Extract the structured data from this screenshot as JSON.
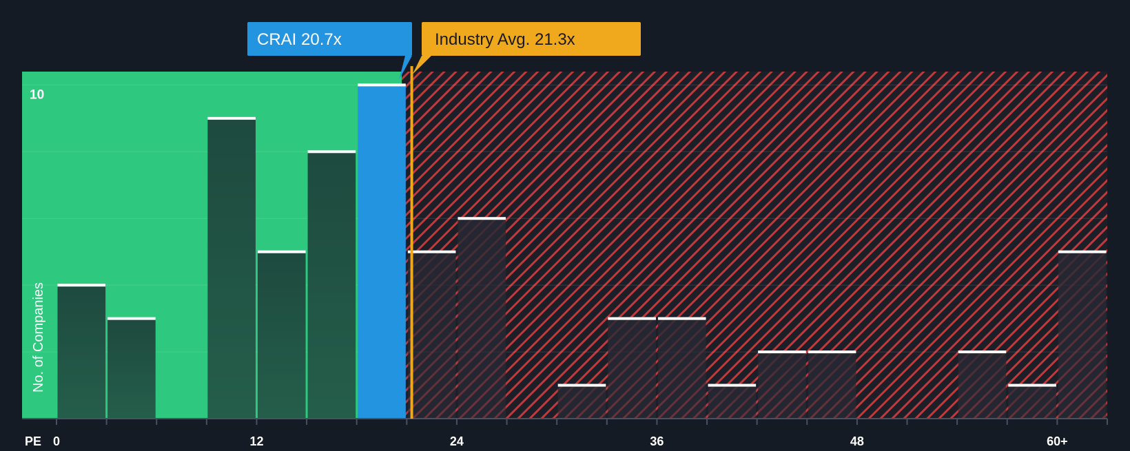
{
  "chart_data": {
    "type": "bar",
    "title": "",
    "xlabel": "PE",
    "ylabel": "No. of Companies",
    "xlim": [
      0,
      63
    ],
    "ylim": [
      0,
      10.4
    ],
    "bin_width": 3,
    "x_ticks": [
      "0",
      "12",
      "24",
      "36",
      "48",
      "60+"
    ],
    "x_tick_values": [
      0,
      12,
      24,
      36,
      48,
      60
    ],
    "y_ticks": [
      "10"
    ],
    "y_tick_values": [
      10
    ],
    "bins": [
      {
        "start": 0,
        "value": 4
      },
      {
        "start": 3,
        "value": 3
      },
      {
        "start": 9,
        "value": 9
      },
      {
        "start": 12,
        "value": 5
      },
      {
        "start": 15,
        "value": 8
      },
      {
        "start": 18,
        "value": 10
      },
      {
        "start": 21,
        "value": 5
      },
      {
        "start": 24,
        "value": 6
      },
      {
        "start": 30,
        "value": 1
      },
      {
        "start": 33,
        "value": 3
      },
      {
        "start": 36,
        "value": 3
      },
      {
        "start": 39,
        "value": 1
      },
      {
        "start": 42,
        "value": 2
      },
      {
        "start": 45,
        "value": 2
      },
      {
        "start": 54,
        "value": 2
      },
      {
        "start": 57,
        "value": 1
      },
      {
        "start": 60,
        "value": 5
      }
    ],
    "company": {
      "label": "CRAI 20.7x",
      "value": 20.7
    },
    "industry_avg": {
      "label": "Industry Avg. 21.3x",
      "value": 21.3
    }
  },
  "colors": {
    "background": "#151b24",
    "undervalued_zone": "#2ec97e",
    "overvalued_zone": "#1c1f28",
    "hatch": "#c0393b",
    "bar": "#1e4a3f",
    "company_bar": "#2394e0",
    "industry_line": "#f0a91c",
    "axis_text": "#ffffff",
    "tick": "#4a5060"
  }
}
